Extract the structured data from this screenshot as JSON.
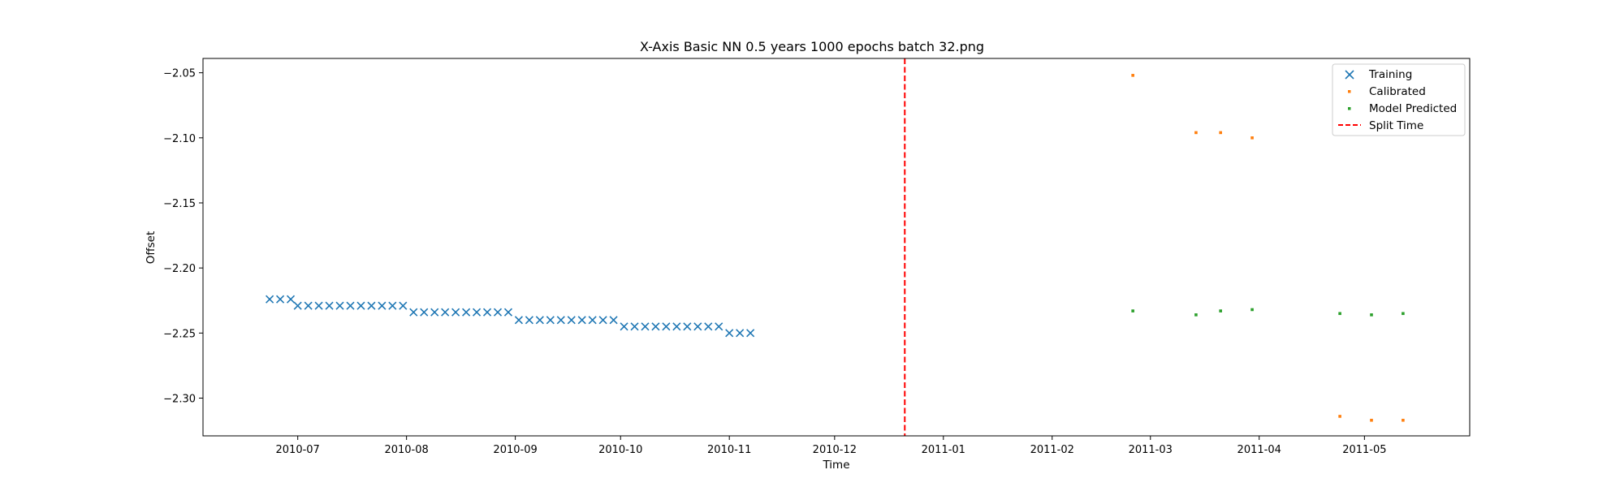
{
  "chart_data": {
    "type": "scatter",
    "title": "X-Axis Basic NN 0.5 years 1000 epochs batch 32.png",
    "xlabel": "Time",
    "ylabel": "Offset",
    "xlim": [
      "2010-06-04",
      "2011-05-31"
    ],
    "ylim": [
      -2.329,
      -2.039
    ],
    "x_ticks": [
      "2010-07",
      "2010-08",
      "2010-09",
      "2010-10",
      "2010-11",
      "2010-12",
      "2011-01",
      "2011-02",
      "2011-03",
      "2011-04",
      "2011-05"
    ],
    "y_ticks": [
      -2.05,
      -2.1,
      -2.15,
      -2.2,
      -2.25,
      -2.3
    ],
    "y_tick_labels": [
      "−2.05",
      "−2.10",
      "−2.15",
      "−2.20",
      "−2.25",
      "−2.30"
    ],
    "legend_position": "top-right",
    "grid": false,
    "series": [
      {
        "name": "Training",
        "marker": "x",
        "color": "#1f77b4",
        "points": [
          [
            "2010-06-23",
            -2.224
          ],
          [
            "2010-06-26",
            -2.224
          ],
          [
            "2010-06-29",
            -2.224
          ],
          [
            "2010-07-01",
            -2.229
          ],
          [
            "2010-07-04",
            -2.229
          ],
          [
            "2010-07-07",
            -2.229
          ],
          [
            "2010-07-10",
            -2.229
          ],
          [
            "2010-07-13",
            -2.229
          ],
          [
            "2010-07-16",
            -2.229
          ],
          [
            "2010-07-19",
            -2.229
          ],
          [
            "2010-07-22",
            -2.229
          ],
          [
            "2010-07-25",
            -2.229
          ],
          [
            "2010-07-28",
            -2.229
          ],
          [
            "2010-07-31",
            -2.229
          ],
          [
            "2010-08-03",
            -2.234
          ],
          [
            "2010-08-06",
            -2.234
          ],
          [
            "2010-08-09",
            -2.234
          ],
          [
            "2010-08-12",
            -2.234
          ],
          [
            "2010-08-15",
            -2.234
          ],
          [
            "2010-08-18",
            -2.234
          ],
          [
            "2010-08-21",
            -2.234
          ],
          [
            "2010-08-24",
            -2.234
          ],
          [
            "2010-08-27",
            -2.234
          ],
          [
            "2010-08-30",
            -2.234
          ],
          [
            "2010-09-02",
            -2.24
          ],
          [
            "2010-09-05",
            -2.24
          ],
          [
            "2010-09-08",
            -2.24
          ],
          [
            "2010-09-11",
            -2.24
          ],
          [
            "2010-09-14",
            -2.24
          ],
          [
            "2010-09-17",
            -2.24
          ],
          [
            "2010-09-20",
            -2.24
          ],
          [
            "2010-09-23",
            -2.24
          ],
          [
            "2010-09-26",
            -2.24
          ],
          [
            "2010-09-29",
            -2.24
          ],
          [
            "2010-10-02",
            -2.245
          ],
          [
            "2010-10-05",
            -2.245
          ],
          [
            "2010-10-08",
            -2.245
          ],
          [
            "2010-10-11",
            -2.245
          ],
          [
            "2010-10-14",
            -2.245
          ],
          [
            "2010-10-17",
            -2.245
          ],
          [
            "2010-10-20",
            -2.245
          ],
          [
            "2010-10-23",
            -2.245
          ],
          [
            "2010-10-26",
            -2.245
          ],
          [
            "2010-10-29",
            -2.245
          ],
          [
            "2010-11-01",
            -2.25
          ],
          [
            "2010-11-04",
            -2.25
          ],
          [
            "2010-11-07",
            -2.25
          ]
        ]
      },
      {
        "name": "Calibrated",
        "marker": "dot",
        "color": "#ff7f0e",
        "points": [
          [
            "2011-02-24",
            -2.052
          ],
          [
            "2011-03-14",
            -2.096
          ],
          [
            "2011-03-21",
            -2.096
          ],
          [
            "2011-03-30",
            -2.1
          ],
          [
            "2011-04-24",
            -2.314
          ],
          [
            "2011-05-03",
            -2.317
          ],
          [
            "2011-05-12",
            -2.317
          ]
        ]
      },
      {
        "name": "Model Predicted",
        "marker": "dot",
        "color": "#2ca02c",
        "points": [
          [
            "2011-02-24",
            -2.233
          ],
          [
            "2011-03-14",
            -2.236
          ],
          [
            "2011-03-21",
            -2.233
          ],
          [
            "2011-03-30",
            -2.232
          ],
          [
            "2011-04-24",
            -2.235
          ],
          [
            "2011-05-03",
            -2.236
          ],
          [
            "2011-05-12",
            -2.235
          ]
        ]
      }
    ],
    "split_time": {
      "name": "Split Time",
      "x": "2010-12-21",
      "color": "#ff0000",
      "style": "dashed"
    }
  }
}
